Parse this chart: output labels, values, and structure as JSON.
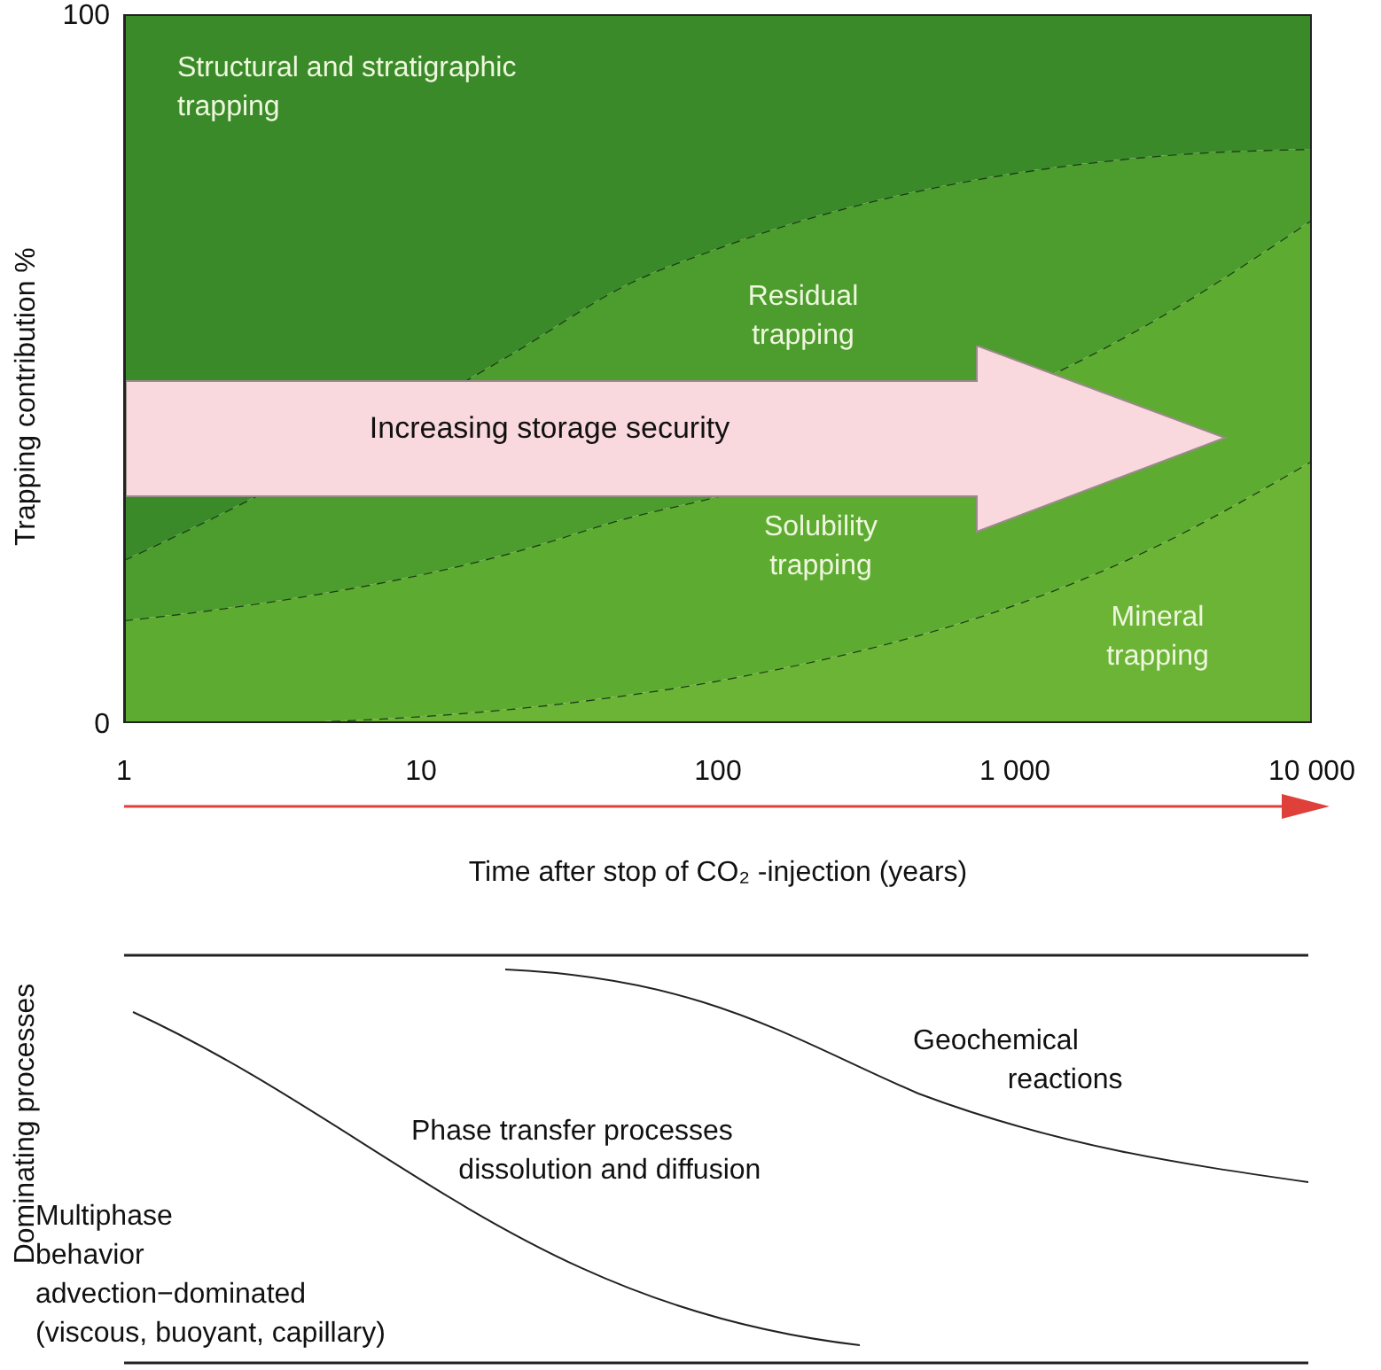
{
  "chart_data": [
    {
      "type": "area",
      "stacked": true,
      "log": "x",
      "line_style": "dashed",
      "xlabel": "Time after stop of CO₂ -injection (years)",
      "ylabel": "Trapping contribution %",
      "annotations": [
        "Increasing storage security"
      ],
      "x": [
        1,
        2,
        20,
        50,
        100,
        3000,
        10000
      ],
      "xlim": [
        1,
        10000
      ],
      "xticks": [
        1,
        10,
        100,
        {
          "value": 1000,
          "label": "1 000"
        },
        {
          "value": 10000,
          "label": "10 000"
        }
      ],
      "ylim": [
        0,
        100
      ],
      "yticks": [
        0,
        100
      ],
      "series": [
        {
          "name": "Mineral trapping",
          "color": "#6bb436",
          "values": [
            0,
            0,
            2,
            4,
            6,
            25,
            37
          ]
        },
        {
          "name": "Solubility trapping",
          "color": "#5eab32",
          "values": [
            14.5,
            16,
            22,
            25,
            26,
            32,
            34
          ]
        },
        {
          "name": "Residual trapping",
          "color": "#4c9c2e",
          "values": [
            8.5,
            13,
            28,
            33,
            35,
            23,
            10
          ]
        },
        {
          "name": "Structural and stratigraphic trapping",
          "color": "#3a8a2a",
          "values": [
            77,
            71,
            48,
            38,
            33,
            20,
            19
          ]
        }
      ]
    },
    {
      "type": "other",
      "ylabel": "Dominating processes",
      "annotations": [
        "Multiphase\nbehavior\nadvection−dominated\n(viscous, buoyant, capillary)",
        "Phase transfer processes\n      dissolution and diffusion",
        "Geochemical\n            reactions"
      ]
    }
  ]
}
